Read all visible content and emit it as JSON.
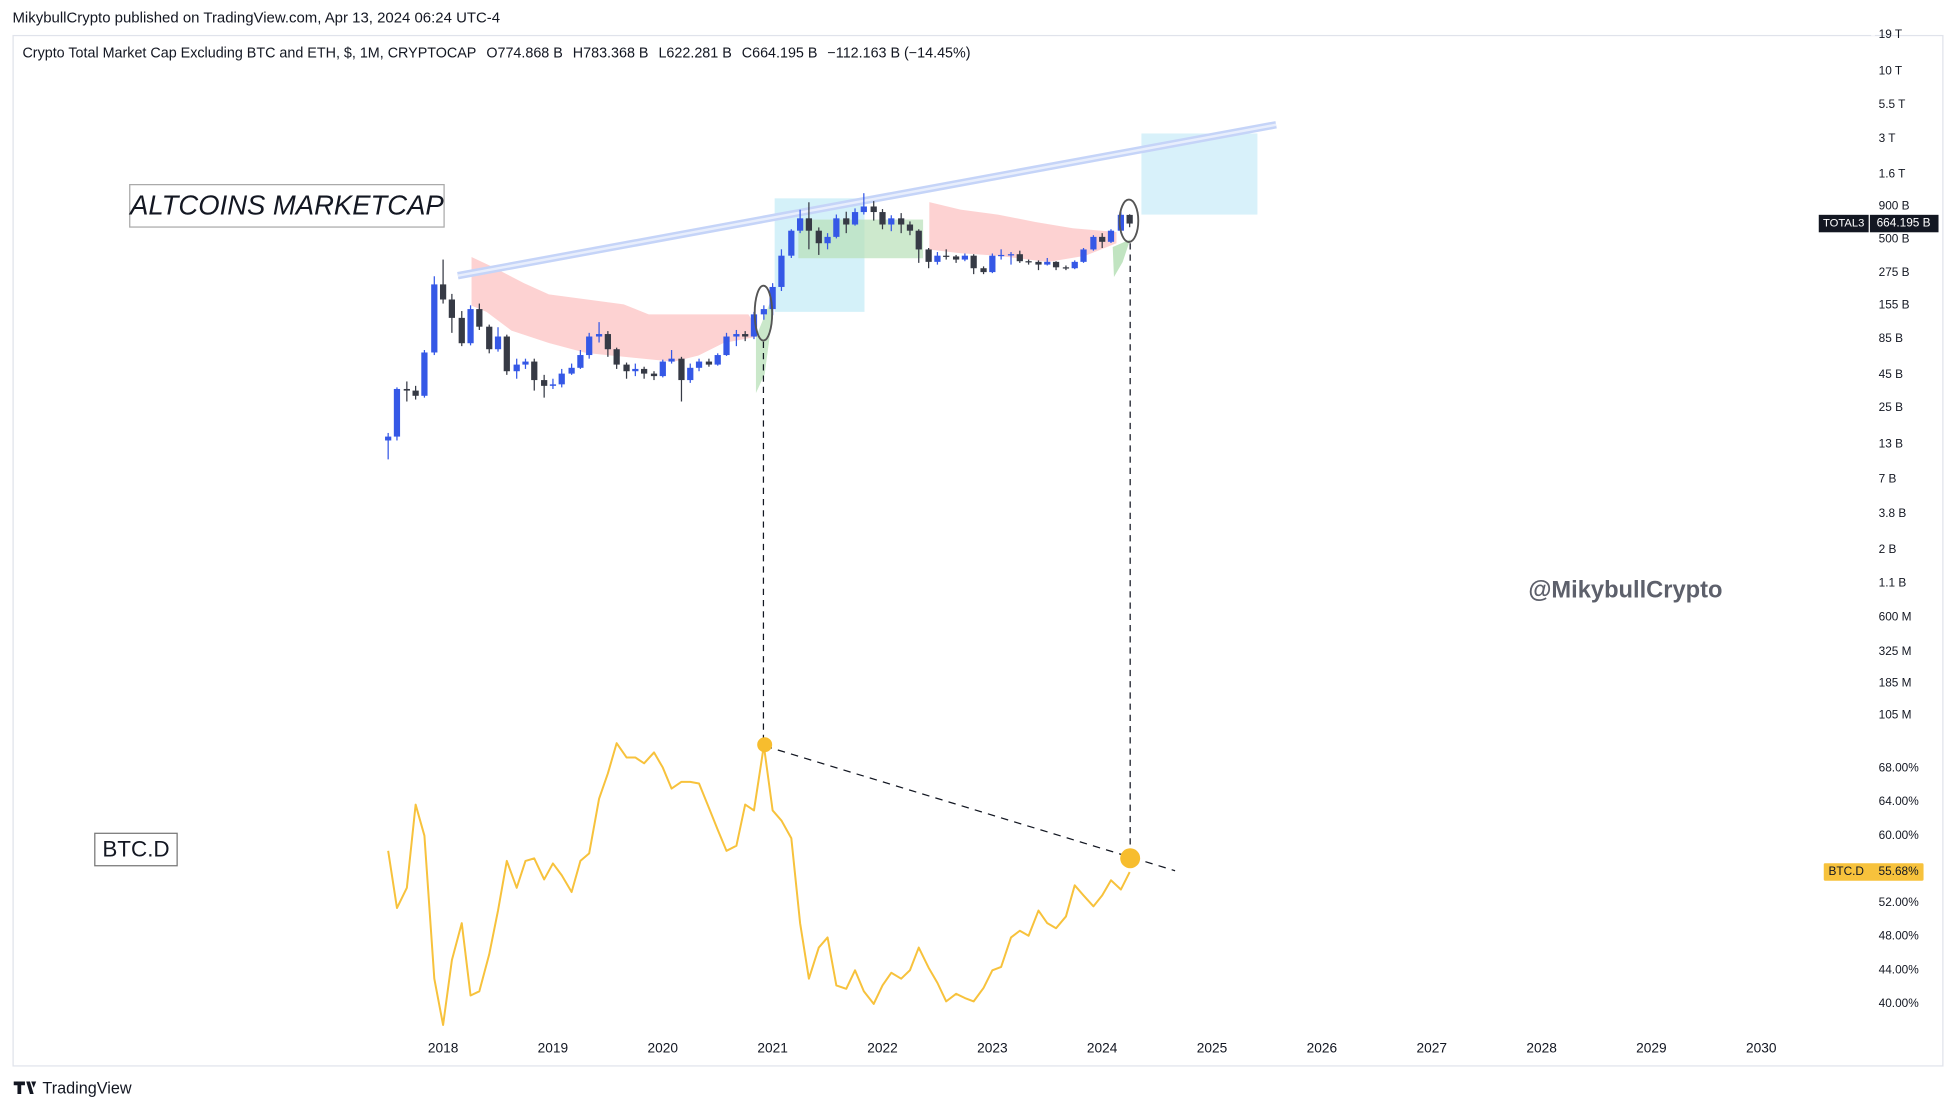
{
  "header": {
    "publisher": "MikybullCrypto published on TradingView.com, Apr 13, 2024 06:24 UTC-4"
  },
  "watermark": "@MikybullCrypto",
  "footer": {
    "brand": "TradingView"
  },
  "chart_data": [
    {
      "type": "candlestick",
      "title": "Crypto Total Market Cap Excluding BTC and ETH, $, 1M, CRYPTOCAP",
      "ohlc_labels": [
        "O774.868 B",
        "H783.368 B",
        "L622.281 B",
        "C664.195 B",
        "−112.163 B (−14.45%)"
      ],
      "annotation": "ALTCOINS MARKETCAP",
      "symbol": "TOTAL3",
      "close_label": "664.195 B",
      "log_scale": true,
      "grid": false,
      "up_color": "#3558e6",
      "down_color": "#363a45",
      "x": [
        2017.5,
        2017.58,
        2017.67,
        2017.75,
        2017.83,
        2017.92,
        2018,
        2018.08,
        2018.17,
        2018.25,
        2018.33,
        2018.42,
        2018.5,
        2018.58,
        2018.67,
        2018.75,
        2018.83,
        2018.92,
        2019,
        2019.08,
        2019.17,
        2019.25,
        2019.33,
        2019.42,
        2019.5,
        2019.58,
        2019.67,
        2019.75,
        2019.83,
        2019.92,
        2020,
        2020.08,
        2020.17,
        2020.25,
        2020.33,
        2020.42,
        2020.5,
        2020.58,
        2020.67,
        2020.75,
        2020.83,
        2020.92,
        2021,
        2021.08,
        2021.17,
        2021.25,
        2021.33,
        2021.42,
        2021.5,
        2021.58,
        2021.67,
        2021.75,
        2021.83,
        2021.92,
        2022,
        2022.08,
        2022.17,
        2022.25,
        2022.33,
        2022.42,
        2022.5,
        2022.58,
        2022.67,
        2022.75,
        2022.83,
        2022.92,
        2023,
        2023.08,
        2023.17,
        2023.25,
        2023.33,
        2023.42,
        2023.5,
        2023.58,
        2023.67,
        2023.75,
        2023.83,
        2023.92,
        2024,
        2024.08,
        2024.17,
        2024.25
      ],
      "open": [
        14,
        15,
        35,
        34,
        31,
        67,
        225,
        172,
        124,
        79,
        145,
        106,
        71,
        89,
        48,
        54,
        57,
        41,
        37,
        38,
        46,
        51,
        64,
        89,
        93,
        71,
        54,
        48,
        50,
        46,
        44,
        57,
        60,
        41,
        51,
        57,
        54,
        64,
        89,
        93,
        89,
        132,
        145,
        215,
        375,
        585,
        729,
        585,
        468,
        524,
        729,
        653,
        815,
        900,
        815,
        653,
        729,
        653,
        585,
        419,
        336,
        375,
        370,
        350,
        375,
        300,
        280,
        375,
        380,
        385,
        340,
        336,
        320,
        336,
        305,
        300,
        336,
        419,
        524,
        480,
        585,
        774.868
      ],
      "high": [
        16,
        36,
        40,
        37,
        70,
        260,
        350,
        190,
        140,
        155,
        160,
        110,
        105,
        92,
        60,
        60,
        60,
        45,
        42,
        50,
        55,
        70,
        95,
        115,
        98,
        73,
        56,
        55,
        52,
        48,
        59,
        70,
        62,
        55,
        60,
        60,
        66,
        95,
        100,
        98,
        138,
        155,
        230,
        420,
        600,
        850,
        970,
        620,
        560,
        780,
        820,
        870,
        1140,
        990,
        860,
        770,
        800,
        690,
        600,
        430,
        400,
        420,
        380,
        390,
        385,
        310,
        390,
        420,
        400,
        410,
        350,
        345,
        360,
        340,
        315,
        345,
        430,
        540,
        560,
        600,
        860,
        783.368
      ],
      "low": [
        10,
        14,
        28,
        29,
        30,
        64,
        160,
        95,
        75,
        76,
        100,
        66,
        68,
        45,
        42,
        50,
        34,
        30,
        35,
        36,
        45,
        50,
        60,
        80,
        62,
        50,
        42,
        44,
        42,
        41,
        43,
        55,
        28,
        39,
        48,
        52,
        53,
        63,
        75,
        82,
        85,
        120,
        130,
        200,
        360,
        560,
        420,
        380,
        420,
        510,
        560,
        640,
        780,
        700,
        600,
        580,
        560,
        540,
        330,
        300,
        320,
        350,
        330,
        340,
        270,
        270,
        275,
        350,
        320,
        330,
        320,
        290,
        315,
        290,
        290,
        295,
        330,
        410,
        430,
        470,
        580,
        622.281
      ],
      "close": [
        15,
        35,
        34,
        31,
        67,
        225,
        172,
        124,
        79,
        145,
        106,
        71,
        89,
        48,
        54,
        57,
        41,
        37,
        38,
        46,
        51,
        64,
        89,
        93,
        71,
        54,
        48,
        50,
        46,
        44,
        57,
        60,
        41,
        51,
        57,
        54,
        64,
        89,
        93,
        89,
        132,
        145,
        215,
        375,
        585,
        729,
        585,
        468,
        524,
        729,
        653,
        815,
        900,
        815,
        653,
        729,
        653,
        585,
        419,
        336,
        375,
        370,
        350,
        375,
        300,
        280,
        375,
        380,
        385,
        340,
        336,
        320,
        336,
        305,
        300,
        336,
        419,
        524,
        480,
        585,
        776.358,
        664.195
      ],
      "xlim": [
        2014.08,
        2031
      ],
      "ylim": [
        0.07,
        20000
      ],
      "yticks": [
        {
          "value": 19000,
          "label": "19 T"
        },
        {
          "value": 10000,
          "label": "10 T"
        },
        {
          "value": 5500,
          "label": "5.5 T"
        },
        {
          "value": 3000,
          "label": "3 T"
        },
        {
          "value": 1600,
          "label": "1.6 T"
        },
        {
          "value": 900,
          "label": "900 B"
        },
        {
          "value": 500,
          "label": "500 B"
        },
        {
          "value": 275,
          "label": "275 B"
        },
        {
          "value": 155,
          "label": "155 B"
        },
        {
          "value": 85,
          "label": "85 B"
        },
        {
          "value": 45,
          "label": "45 B"
        },
        {
          "value": 25,
          "label": "25 B"
        },
        {
          "value": 13,
          "label": "13 B"
        },
        {
          "value": 7,
          "label": "7 B"
        },
        {
          "value": 3.8,
          "label": "3.8 B"
        },
        {
          "value": 2,
          "label": "2 B"
        },
        {
          "value": 1.1,
          "label": "1.1 B"
        },
        {
          "value": 0.6,
          "label": "600 M"
        },
        {
          "value": 0.325,
          "label": "325 M"
        },
        {
          "value": 0.185,
          "label": "185 M"
        },
        {
          "value": 0.105,
          "label": "105 M"
        }
      ]
    },
    {
      "type": "line",
      "annotation": "BTC.D",
      "grid": false,
      "x": [
        2017.5,
        2017.58,
        2017.67,
        2017.75,
        2017.83,
        2017.92,
        2018,
        2018.08,
        2018.17,
        2018.25,
        2018.33,
        2018.42,
        2018.5,
        2018.58,
        2018.67,
        2018.75,
        2018.83,
        2018.92,
        2019,
        2019.08,
        2019.17,
        2019.25,
        2019.33,
        2019.42,
        2019.5,
        2019.58,
        2019.67,
        2019.75,
        2019.83,
        2019.92,
        2020,
        2020.08,
        2020.17,
        2020.25,
        2020.33,
        2020.42,
        2020.5,
        2020.58,
        2020.67,
        2020.75,
        2020.83,
        2020.92,
        2021,
        2021.08,
        2021.17,
        2021.25,
        2021.33,
        2021.42,
        2021.5,
        2021.58,
        2021.67,
        2021.75,
        2021.83,
        2021.92,
        2022,
        2022.08,
        2022.17,
        2022.25,
        2022.33,
        2022.42,
        2022.5,
        2022.58,
        2022.67,
        2022.75,
        2022.83,
        2022.92,
        2023,
        2023.08,
        2023.17,
        2023.25,
        2023.33,
        2023.42,
        2023.5,
        2023.58,
        2023.67,
        2023.75,
        2023.83,
        2023.92,
        2024,
        2024.08,
        2024.17,
        2024.25
      ],
      "series": [
        {
          "name": "BTC.D",
          "color": "#f7c23c",
          "last_label": "55.68%",
          "values": [
            58.2,
            51.4,
            53.8,
            63.7,
            60.0,
            43.0,
            37.5,
            45.2,
            49.6,
            41.0,
            41.5,
            45.9,
            51.1,
            57.0,
            53.8,
            57.0,
            57.3,
            54.8,
            56.7,
            55.3,
            53.3,
            57.0,
            57.9,
            64.4,
            67.4,
            71.0,
            69.3,
            69.3,
            68.6,
            69.9,
            68.1,
            65.6,
            66.4,
            66.4,
            66.2,
            63.3,
            60.7,
            58.2,
            58.8,
            63.7,
            63.0,
            70.7,
            63.0,
            61.8,
            59.7,
            49.6,
            43.0,
            46.7,
            47.9,
            42.2,
            41.8,
            44.0,
            41.5,
            40.0,
            42.2,
            43.7,
            43.0,
            44.0,
            46.7,
            44.3,
            42.5,
            40.3,
            41.2,
            40.7,
            40.3,
            41.9,
            44.0,
            44.4,
            47.9,
            48.7,
            48.1,
            51.1,
            49.6,
            49.0,
            50.4,
            54.1,
            52.9,
            51.6,
            52.9,
            54.7,
            53.6,
            55.68
          ]
        }
      ],
      "xlim": [
        2014.08,
        2031
      ],
      "xticks": [
        2018,
        2019,
        2020,
        2021,
        2022,
        2023,
        2024,
        2025,
        2026,
        2027,
        2028,
        2029,
        2030
      ],
      "ylim": [
        37,
        72
      ],
      "yticks": [
        {
          "value": 68,
          "label": "68.00%"
        },
        {
          "value": 64,
          "label": "64.00%"
        },
        {
          "value": 60,
          "label": "60.00%"
        },
        {
          "value": 52,
          "label": "52.00%"
        },
        {
          "value": 48,
          "label": "48.00%"
        },
        {
          "value": 44,
          "label": "44.00%"
        },
        {
          "value": 40,
          "label": "40.00%"
        }
      ]
    }
  ]
}
